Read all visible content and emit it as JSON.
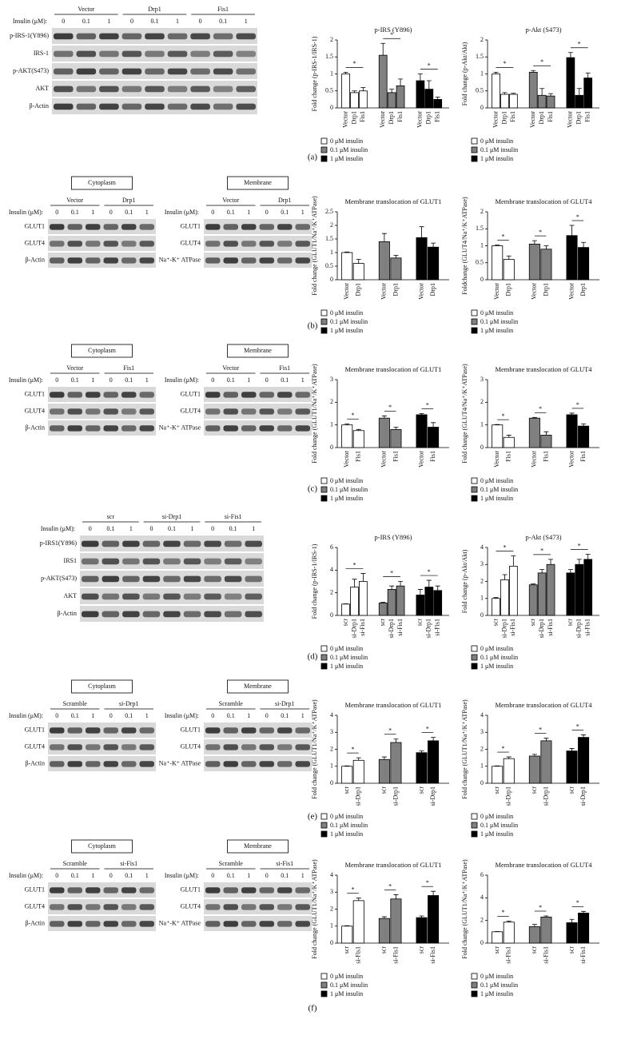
{
  "panels": [
    {
      "label": "(a)",
      "blots": [
        {
          "groups": [
            "Vector",
            "Drp1",
            "Fis1"
          ],
          "insulin_label": "Insulin (μM):",
          "doses": [
            "0",
            "0.1",
            "1"
          ],
          "rows": [
            "p-IRS-1(Y896)",
            "IRS-1",
            "p-AKT(S473)",
            "AKT",
            "β-Actin"
          ]
        }
      ]
    },
    {
      "label": "(b)",
      "blots": [
        {
          "box": "Cytoplasm",
          "groups": [
            "Vector",
            "Drp1"
          ],
          "insulin_label": "Insulin (μM):",
          "doses": [
            "0",
            "0.1",
            "1"
          ],
          "rows": [
            "GLUT1",
            "GLUT4",
            "β-Actin"
          ]
        },
        {
          "box": "Membrane",
          "groups": [
            "Vector",
            "Drp1"
          ],
          "insulin_label": "Insulin (μM):",
          "doses": [
            "0",
            "0.1",
            "1"
          ],
          "rows": [
            "GLUT1",
            "GLUT4",
            "Na⁺-K⁺ ATPase"
          ]
        }
      ]
    },
    {
      "label": "(c)",
      "blots": [
        {
          "box": "Cytoplasm",
          "groups": [
            "Vector",
            "Fis1"
          ],
          "insulin_label": "Insulin (μM):",
          "doses": [
            "0",
            "0.1",
            "1"
          ],
          "rows": [
            "GLUT1",
            "GLUT4",
            "β-Actin"
          ]
        },
        {
          "box": "Membrane",
          "groups": [
            "Vector",
            "Fis1"
          ],
          "insulin_label": "Insulin (μM):",
          "doses": [
            "0",
            "0.1",
            "1"
          ],
          "rows": [
            "GLUT1",
            "GLUT4",
            "Na⁺-K⁺ ATPase"
          ]
        }
      ]
    },
    {
      "label": "(d)",
      "blots": [
        {
          "groups": [
            "scr",
            "si-Drp1",
            "si-Fis1"
          ],
          "insulin_label": "Insulin (μM):",
          "doses": [
            "0",
            "0.1",
            "1"
          ],
          "rows": [
            "p-IRS1(Y896)",
            "IRS1",
            "p-AKT(S473)",
            "AKT",
            "β-Actin"
          ]
        }
      ]
    },
    {
      "label": "(e)",
      "blots": [
        {
          "box": "Cytoplasm",
          "groups": [
            "Scramble",
            "si-Drp1"
          ],
          "insulin_label": "Insulin (μM):",
          "doses": [
            "0",
            "0.1",
            "1"
          ],
          "rows": [
            "GLUT1",
            "GLUT4",
            "β-Actin"
          ]
        },
        {
          "box": "Membrane",
          "groups": [
            "Scramble",
            "si-Drp1"
          ],
          "insulin_label": "Insulin (μM):",
          "doses": [
            "0",
            "0.1",
            "1"
          ],
          "rows": [
            "GLUT1",
            "GLUT4",
            "Na⁺-K⁺ ATPase"
          ]
        }
      ]
    },
    {
      "label": "(f)",
      "blots": [
        {
          "box": "Cytoplasm",
          "groups": [
            "Scramble",
            "si-Fis1"
          ],
          "insulin_label": "Insulin (μM):",
          "doses": [
            "0",
            "0.1",
            "1"
          ],
          "rows": [
            "GLUT1",
            "GLUT4",
            "β-Actin"
          ]
        },
        {
          "box": "Membrane",
          "groups": [
            "Scramble",
            "si-Fis1"
          ],
          "insulin_label": "Insulin (μM):",
          "doses": [
            "0",
            "0.1",
            "1"
          ],
          "rows": [
            "GLUT1",
            "GLUT4",
            "Na⁺-K⁺ ATPase"
          ]
        }
      ]
    }
  ],
  "chart_data": [
    {
      "type": "bar",
      "title": "p-IRS (Y896)",
      "y_label": "Fold change (p-IRS-1/IRS-1)",
      "categories": [
        "Vector",
        "Drp1",
        "Fis1"
      ],
      "ylim": [
        0,
        2
      ],
      "yticks": [
        0,
        0.5,
        1,
        1.5,
        2
      ],
      "annotation": "*",
      "series": [
        {
          "name": "0 μM insulin",
          "color": "#ffffff",
          "values": [
            1.0,
            0.45,
            0.5
          ],
          "errors": [
            0.05,
            0.05,
            0.1
          ]
        },
        {
          "name": "0.1 μM insulin",
          "color": "#808080",
          "values": [
            1.55,
            0.45,
            0.65
          ],
          "errors": [
            0.35,
            0.1,
            0.2
          ]
        },
        {
          "name": "1 μM insulin",
          "color": "#000000",
          "values": [
            0.8,
            0.55,
            0.25
          ],
          "errors": [
            0.2,
            0.25,
            0.07
          ]
        }
      ]
    },
    {
      "type": "bar",
      "title": "p-Akt (S473)",
      "y_label": "Fold change (p-Akt/Akt)",
      "categories": [
        "Vector",
        "Drp1",
        "Fis1"
      ],
      "ylim": [
        0,
        2
      ],
      "yticks": [
        0,
        0.5,
        1,
        1.5,
        2
      ],
      "annotation": "*",
      "series": [
        {
          "name": "0 μM insulin",
          "color": "#ffffff",
          "values": [
            1.0,
            0.4,
            0.4
          ],
          "errors": [
            0.05,
            0.05,
            0.03
          ]
        },
        {
          "name": "0.1 μM insulin",
          "color": "#808080",
          "values": [
            1.05,
            0.37,
            0.35
          ],
          "errors": [
            0.05,
            0.2,
            0.07
          ]
        },
        {
          "name": "1 μM insulin",
          "color": "#000000",
          "values": [
            1.48,
            0.37,
            0.88
          ],
          "errors": [
            0.15,
            0.2,
            0.15
          ]
        }
      ]
    },
    {
      "type": "bar",
      "title": "Membrane translocation of GLUT1",
      "y_label": "Fold change (GLUT1/Na⁺/K⁺ATPase)",
      "categories": [
        "Vector",
        "Drp1"
      ],
      "ylim": [
        0,
        2.5
      ],
      "yticks": [
        0,
        0.5,
        1,
        1.5,
        2,
        2.5
      ],
      "series": [
        {
          "name": "0 μM insulin",
          "color": "#ffffff",
          "values": [
            1.0,
            0.6
          ],
          "errors": [
            0.02,
            0.15
          ]
        },
        {
          "name": "0.1 μM insulin",
          "color": "#808080",
          "values": [
            1.4,
            0.8
          ],
          "errors": [
            0.3,
            0.1
          ]
        },
        {
          "name": "1 μM insulin",
          "color": "#000000",
          "values": [
            1.55,
            1.2
          ],
          "errors": [
            0.4,
            0.15
          ]
        }
      ]
    },
    {
      "type": "bar",
      "title": "Membrane translocation of GLUT4",
      "y_label": "Foldchange (GLUT4/Na⁺/K⁺ATPase)",
      "categories": [
        "Vector",
        "Drp1"
      ],
      "ylim": [
        0,
        2
      ],
      "yticks": [
        0,
        0.5,
        1,
        1.5,
        2
      ],
      "annotation": "*",
      "series": [
        {
          "name": "0 μM insulin",
          "color": "#ffffff",
          "values": [
            1.0,
            0.6
          ],
          "errors": [
            0.02,
            0.1
          ]
        },
        {
          "name": "0.1 μM insulin",
          "color": "#808080",
          "values": [
            1.05,
            0.9
          ],
          "errors": [
            0.1,
            0.1
          ]
        },
        {
          "name": "1 μM insulin",
          "color": "#000000",
          "values": [
            1.3,
            0.95
          ],
          "errors": [
            0.3,
            0.15
          ]
        }
      ]
    },
    {
      "type": "bar",
      "title": "Membrane translocation of GLUT1",
      "y_label": "Fold change (GLUT1/Na⁺/K⁺ATPase)",
      "categories": [
        "Vector",
        "Fis1"
      ],
      "ylim": [
        0,
        3
      ],
      "yticks": [
        0,
        1,
        2,
        3
      ],
      "annotation": "*",
      "series": [
        {
          "name": "0 μM insulin",
          "color": "#ffffff",
          "values": [
            1.0,
            0.75
          ],
          "errors": [
            0.05,
            0.05
          ]
        },
        {
          "name": "0.1 μM insulin",
          "color": "#808080",
          "values": [
            1.3,
            0.8
          ],
          "errors": [
            0.1,
            0.1
          ]
        },
        {
          "name": "1 μM insulin",
          "color": "#000000",
          "values": [
            1.45,
            0.9
          ],
          "errors": [
            0.05,
            0.2
          ]
        }
      ]
    },
    {
      "type": "bar",
      "title": "Membrane translocation of GLUT4",
      "y_label": "Fold change (GLUT4/Na⁺/K⁺ATPase)",
      "categories": [
        "Vector",
        "Fis1"
      ],
      "ylim": [
        0,
        3
      ],
      "yticks": [
        0,
        1,
        2,
        3
      ],
      "annotation": "*",
      "series": [
        {
          "name": "0 μM insulin",
          "color": "#ffffff",
          "values": [
            1.0,
            0.45
          ],
          "errors": [
            0.02,
            0.1
          ]
        },
        {
          "name": "0.1 μM insulin",
          "color": "#808080",
          "values": [
            1.3,
            0.55
          ],
          "errors": [
            0.03,
            0.15
          ]
        },
        {
          "name": "1 μM insulin",
          "color": "#000000",
          "values": [
            1.45,
            0.95
          ],
          "errors": [
            0.07,
            0.1
          ]
        }
      ]
    },
    {
      "type": "bar",
      "title": "p-IRS (Y896)",
      "y_label": "Fold change (p-IRS-1/IRS-1)",
      "categories": [
        "scr",
        "si-Drp1",
        "si-Fis1"
      ],
      "ylim": [
        0,
        6
      ],
      "yticks": [
        0,
        2,
        4,
        6
      ],
      "annotation": "*",
      "series": [
        {
          "name": "0 μM insulin",
          "color": "#ffffff",
          "values": [
            1.0,
            2.5,
            3.0
          ],
          "errors": [
            0.02,
            0.7,
            0.7
          ]
        },
        {
          "name": "0.1 μM insulin",
          "color": "#808080",
          "values": [
            1.1,
            2.3,
            2.6
          ],
          "errors": [
            0.05,
            0.3,
            0.4
          ]
        },
        {
          "name": "1 μM insulin",
          "color": "#000000",
          "values": [
            1.8,
            2.5,
            2.2
          ],
          "errors": [
            0.5,
            0.6,
            0.4
          ]
        }
      ]
    },
    {
      "type": "bar",
      "title": "p-Akt (S473)",
      "y_label": "Fold change (p-Akt/Akt)",
      "categories": [
        "scr",
        "si-Drp1",
        "si-Fis1"
      ],
      "ylim": [
        0,
        4
      ],
      "yticks": [
        0,
        1,
        2,
        3,
        4
      ],
      "annotation": "*",
      "series": [
        {
          "name": "0 μM insulin",
          "color": "#ffffff",
          "values": [
            1.0,
            2.1,
            2.9
          ],
          "errors": [
            0.05,
            0.3,
            0.6
          ]
        },
        {
          "name": "0.1 μM insulin",
          "color": "#808080",
          "values": [
            1.8,
            2.5,
            3.0
          ],
          "errors": [
            0.05,
            0.2,
            0.3
          ]
        },
        {
          "name": "1 μM insulin",
          "color": "#000000",
          "values": [
            2.5,
            3.0,
            3.3
          ],
          "errors": [
            0.2,
            0.3,
            0.3
          ]
        }
      ]
    },
    {
      "type": "bar",
      "title": "Membrane translocation of GLUT1",
      "y_label": "Fold change (GLUT1/Na⁺/K⁺ATPase)",
      "categories": [
        "scr",
        "si-Drp1"
      ],
      "ylim": [
        0,
        4
      ],
      "yticks": [
        0,
        1,
        2,
        3,
        4
      ],
      "annotation": "*",
      "series": [
        {
          "name": "0 μM insulin",
          "color": "#ffffff",
          "values": [
            1.0,
            1.35
          ],
          "errors": [
            0.02,
            0.15
          ]
        },
        {
          "name": "0.1 μM insulin",
          "color": "#808080",
          "values": [
            1.4,
            2.4
          ],
          "errors": [
            0.15,
            0.2
          ]
        },
        {
          "name": "1 μM insulin",
          "color": "#000000",
          "values": [
            1.8,
            2.5
          ],
          "errors": [
            0.1,
            0.2
          ]
        }
      ]
    },
    {
      "type": "bar",
      "title": "Membrane translocation of GLUT4",
      "y_label": "Fold change (GLUT1/Na⁺/K⁺ATPase)",
      "categories": [
        "scr",
        "si-Drp1"
      ],
      "ylim": [
        0,
        4
      ],
      "yticks": [
        0,
        1,
        2,
        3,
        4
      ],
      "annotation": "*",
      "series": [
        {
          "name": "0 μM insulin",
          "color": "#ffffff",
          "values": [
            1.0,
            1.45
          ],
          "errors": [
            0.02,
            0.1
          ]
        },
        {
          "name": "0.1 μM insulin",
          "color": "#808080",
          "values": [
            1.6,
            2.5
          ],
          "errors": [
            0.1,
            0.15
          ]
        },
        {
          "name": "1 μM insulin",
          "color": "#000000",
          "values": [
            1.9,
            2.7
          ],
          "errors": [
            0.15,
            0.15
          ]
        }
      ]
    },
    {
      "type": "bar",
      "title": "Membrane translocation of GLUT1",
      "y_label": "Fold change (GLUT1/Na⁺/K⁺ATPase)",
      "categories": [
        "scr",
        "si-Fis1"
      ],
      "ylim": [
        0,
        4
      ],
      "yticks": [
        0,
        1,
        2,
        3,
        4
      ],
      "annotation": "*",
      "series": [
        {
          "name": "0 μM insulin",
          "color": "#ffffff",
          "values": [
            1.0,
            2.5
          ],
          "errors": [
            0.02,
            0.15
          ]
        },
        {
          "name": "0.1 μM insulin",
          "color": "#808080",
          "values": [
            1.45,
            2.6
          ],
          "errors": [
            0.1,
            0.25
          ]
        },
        {
          "name": "1 μM insulin",
          "color": "#000000",
          "values": [
            1.5,
            2.8
          ],
          "errors": [
            0.1,
            0.25
          ]
        }
      ]
    },
    {
      "type": "bar",
      "title": "Membrane translocation of GLUT4",
      "y_label": "Fold change (GLUT1/Na⁺/K⁺ATPase)",
      "categories": [
        "scr",
        "si-Fis1"
      ],
      "ylim": [
        0,
        6
      ],
      "yticks": [
        0,
        2,
        4,
        6
      ],
      "annotation": "*",
      "series": [
        {
          "name": "0 μM insulin",
          "color": "#ffffff",
          "values": [
            1.0,
            1.85
          ],
          "errors": [
            0.02,
            0.1
          ]
        },
        {
          "name": "0.1 μM insulin",
          "color": "#808080",
          "values": [
            1.45,
            2.3
          ],
          "errors": [
            0.2,
            0.1
          ]
        },
        {
          "name": "1 μM insulin",
          "color": "#000000",
          "values": [
            1.8,
            2.65
          ],
          "errors": [
            0.3,
            0.15
          ]
        }
      ]
    }
  ]
}
